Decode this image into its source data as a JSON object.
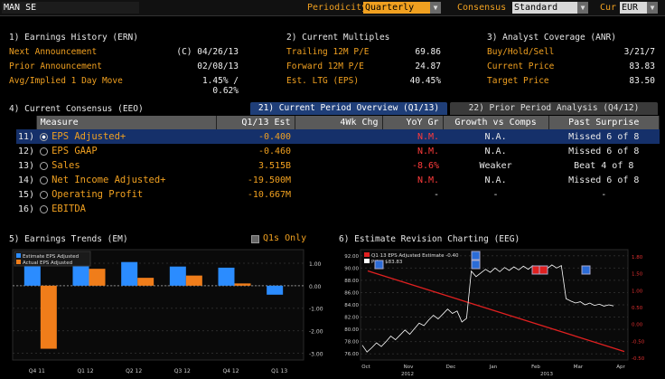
{
  "topbar": {
    "ticker": "MAN SE",
    "periodicity_label": "Periodicity",
    "periodicity_value": "Quarterly",
    "consensus_label": "Consensus",
    "consensus_value": "Standard",
    "currency_label": "Cur",
    "currency_value": "EUR"
  },
  "earnings_history": {
    "title": "1) Earnings History (ERN)",
    "rows": [
      {
        "label": "Next Announcement",
        "value": "(C)  04/26/13"
      },
      {
        "label": "Prior Announcement",
        "value": "02/08/13"
      },
      {
        "label": "Avg/Implied 1 Day Move",
        "value": "1.45% / 0.62%"
      }
    ]
  },
  "current_multiples": {
    "title": "2) Current Multiples",
    "rows": [
      {
        "label": "Trailing 12M P/E",
        "value": "69.86"
      },
      {
        "label": "Forward 12M P/E",
        "value": "24.87"
      },
      {
        "label": "Est. LTG (EPS)",
        "value": "40.45%"
      }
    ]
  },
  "analyst_coverage": {
    "title": "3) Analyst Coverage (ANR)",
    "rows": [
      {
        "label": "Buy/Hold/Sell",
        "value": "3/21/7"
      },
      {
        "label": "Current Price",
        "value": "83.83"
      },
      {
        "label": "Target Price",
        "value": "83.50"
      }
    ]
  },
  "consensus": {
    "title": "4) Current Consensus (EEO)",
    "tab1": "21) Current Period Overview (Q1/13)",
    "tab2": "22) Prior Period Analysis (Q4/12)",
    "headers": [
      "Measure",
      "Q1/13 Est",
      "4Wk Chg",
      "YoY Gr",
      "Growth vs Comps",
      "Past Surprise"
    ],
    "rows": [
      {
        "n": "11)",
        "measure": "EPS Adjusted+",
        "est": "-0.400",
        "chg": "",
        "yoy": "N.M.",
        "growth": "N.A.",
        "surprise": "Missed 6 of 8"
      },
      {
        "n": "12)",
        "measure": "EPS GAAP",
        "est": "-0.460",
        "chg": "",
        "yoy": "N.M.",
        "growth": "N.A.",
        "surprise": "Missed 6 of 8"
      },
      {
        "n": "13)",
        "measure": "Sales",
        "est": "3.515B",
        "chg": "",
        "yoy": "-8.6%",
        "growth": "Weaker",
        "surprise": "Beat 4 of 8"
      },
      {
        "n": "14)",
        "measure": "Net Income Adjusted+",
        "est": "-19.500M",
        "chg": "",
        "yoy": "N.M.",
        "growth": "N.A.",
        "surprise": "Missed 6 of 8"
      },
      {
        "n": "15)",
        "measure": "Operating Profit",
        "est": "-10.667M",
        "chg": "",
        "yoy": "-",
        "growth": "-",
        "surprise": "-"
      },
      {
        "n": "16)",
        "measure": "EBITDA",
        "est": "",
        "chg": "",
        "yoy": "",
        "growth": "",
        "surprise": ""
      }
    ]
  },
  "earnings_trends": {
    "title": "5) Earnings Trends (EM)",
    "q1s_only": "Q1s Only",
    "colors": {
      "estimate": "#2b8cff",
      "actual": "#f07d1a"
    }
  },
  "revision_chart": {
    "title": "6) Estimate Revision Charting (EEG)",
    "colors": {
      "estimate": "#e02020",
      "price": "#ffffff"
    }
  },
  "chart_data": [
    {
      "type": "bar",
      "categories": [
        "Q4 11",
        "Q1 12",
        "Q2 12",
        "Q3 12",
        "Q4 12",
        "Q1 13"
      ],
      "series": [
        {
          "name": "Estimate EPS Adjusted",
          "values": [
            0.95,
            1.1,
            1.05,
            0.85,
            0.8,
            -0.4
          ]
        },
        {
          "name": "Actual EPS Adjusted",
          "values": [
            -2.8,
            0.75,
            0.35,
            0.45,
            0.1,
            null
          ]
        }
      ],
      "y_ticks": [
        "1.00",
        "0.00",
        "-1.00",
        "-2.00",
        "-3.00"
      ],
      "ylim": [
        -3.3,
        1.6
      ]
    },
    {
      "type": "line",
      "legend": [
        "Q1 13 EPS Adjusted Estimate -0.40",
        "Price $83.83"
      ],
      "x_ticks": [
        "Oct",
        "Nov",
        "Dec",
        "Jan",
        "Feb",
        "Mar",
        "Apr"
      ],
      "x_year_ticks": [
        "2012",
        "2013"
      ],
      "y_ticks_left": [
        "92.00",
        "90.00",
        "88.00",
        "86.00",
        "84.00",
        "82.00",
        "80.00",
        "78.00",
        "76.00"
      ],
      "y_ticks_right": [
        "1.80",
        "1.50",
        "1.00",
        "0.50",
        "0.00",
        "-0.50",
        "-0.50"
      ],
      "price_ylim": [
        75,
        93
      ],
      "price": [
        77.4,
        76.3,
        77.0,
        77.8,
        77.2,
        78.0,
        78.9,
        78.3,
        79.1,
        79.9,
        79.2,
        80.1,
        81.0,
        80.6,
        81.5,
        82.3,
        81.7,
        82.5,
        83.3,
        82.6,
        83.0,
        81.2,
        81.8,
        89.5,
        88.6,
        89.2,
        89.8,
        89.3,
        90.0,
        89.4,
        90.1,
        89.6,
        90.2,
        89.7,
        90.3,
        89.8,
        90.4,
        89.9,
        90.3,
        89.9,
        90.5,
        90.0,
        90.4,
        85.0,
        84.6,
        84.3,
        84.5,
        84.0,
        84.3,
        83.9,
        84.1,
        83.8,
        84.0,
        83.83
      ],
      "estimate_start": 1.5,
      "estimate_end": -0.4,
      "estimate_ylim": [
        -0.6,
        2.0
      ]
    }
  ]
}
